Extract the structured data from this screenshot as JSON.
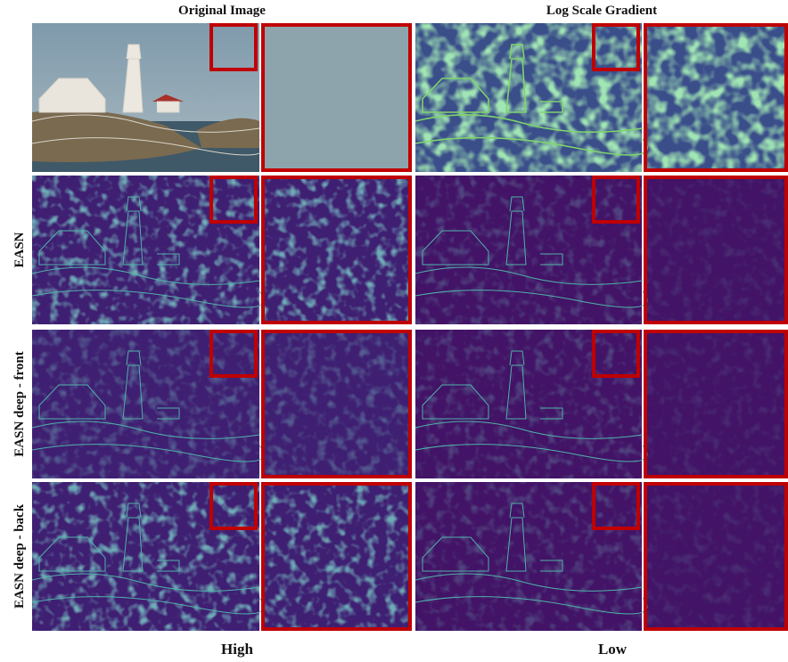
{
  "columns": [
    "Original Image",
    "Log Scale Gradient"
  ],
  "rows": [
    "EASN",
    "EASN deep - front",
    "EASN deep - back"
  ],
  "footer": [
    "High",
    "Low"
  ]
}
